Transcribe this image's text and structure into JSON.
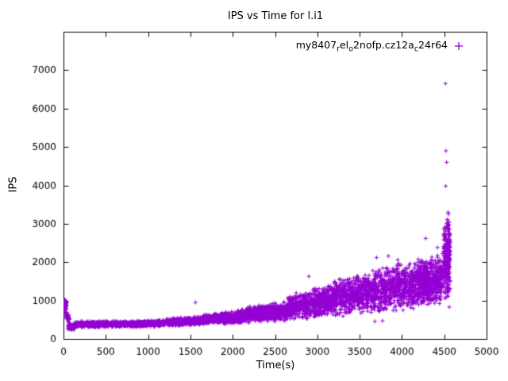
{
  "chart_data": {
    "type": "scatter",
    "title": "IPS vs Time for l.i1",
    "xlabel": "Time(s)",
    "ylabel": "IPS",
    "xlim": [
      0,
      5000
    ],
    "ylim": [
      0,
      8000
    ],
    "xticks": [
      0,
      500,
      1000,
      1500,
      2000,
      2500,
      3000,
      3500,
      4000,
      4500,
      5000
    ],
    "yticks": [
      0,
      1000,
      2000,
      3000,
      4000,
      5000,
      6000,
      7000
    ],
    "grid": false,
    "legend_position": "top-right-inside",
    "marker": "plus",
    "series": [
      {
        "name_raw": "my8407_rel_o2nofp.cz12a_c24r64",
        "name_parts": [
          {
            "text": "my8407"
          },
          {
            "text": "r",
            "sub": true
          },
          {
            "text": "el"
          },
          {
            "text": "o",
            "sub": true
          },
          {
            "text": "2nofp.cz12a"
          },
          {
            "text": "c",
            "sub": true
          },
          {
            "text": "24r64"
          }
        ],
        "color": "#9400D3",
        "cloud_segments": [
          {
            "x0": 5,
            "x1": 35,
            "n": 70,
            "y_lo_start": 720,
            "y_hi_start": 1060,
            "y_lo_end": 700,
            "y_hi_end": 1000
          },
          {
            "x0": 25,
            "x1": 70,
            "n": 40,
            "y_lo_start": 480,
            "y_hi_start": 800,
            "y_lo_end": 380,
            "y_hi_end": 620
          },
          {
            "x0": 55,
            "x1": 130,
            "n": 70,
            "y_lo_start": 210,
            "y_hi_start": 420,
            "y_lo_end": 230,
            "y_hi_end": 400
          },
          {
            "x0": 120,
            "x1": 650,
            "n": 380,
            "y_lo_start": 290,
            "y_hi_start": 470,
            "y_lo_end": 300,
            "y_hi_end": 470
          },
          {
            "x0": 650,
            "x1": 1150,
            "n": 400,
            "y_lo_start": 300,
            "y_hi_start": 470,
            "y_lo_end": 310,
            "y_hi_end": 500
          },
          {
            "x0": 1150,
            "x1": 1650,
            "n": 420,
            "y_lo_start": 320,
            "y_hi_start": 520,
            "y_lo_end": 350,
            "y_hi_end": 600
          },
          {
            "x0": 1650,
            "x1": 2150,
            "n": 480,
            "y_lo_start": 360,
            "y_hi_start": 650,
            "y_lo_end": 400,
            "y_hi_end": 780
          },
          {
            "x0": 2150,
            "x1": 2650,
            "n": 520,
            "y_lo_start": 400,
            "y_hi_start": 850,
            "y_lo_end": 450,
            "y_hi_end": 1000
          },
          {
            "x0": 2650,
            "x1": 3150,
            "n": 580,
            "y_lo_start": 480,
            "y_hi_start": 1150,
            "y_lo_end": 550,
            "y_hi_end": 1450
          },
          {
            "x0": 3150,
            "x1": 3650,
            "n": 620,
            "y_lo_start": 550,
            "y_hi_start": 1550,
            "y_lo_end": 650,
            "y_hi_end": 1750
          },
          {
            "x0": 3650,
            "x1": 4150,
            "n": 650,
            "y_lo_start": 650,
            "y_hi_start": 1850,
            "y_lo_end": 750,
            "y_hi_end": 2050
          },
          {
            "x0": 4150,
            "x1": 4480,
            "n": 600,
            "y_lo_start": 800,
            "y_hi_start": 2100,
            "y_lo_end": 900,
            "y_hi_end": 2250
          },
          {
            "x0": 4490,
            "x1": 4570,
            "n": 260,
            "y_lo_start": 1000,
            "y_hi_start": 3100,
            "y_lo_end": 1000,
            "y_hi_end": 3300
          }
        ],
        "outliers": [
          [
            1560,
            950
          ],
          [
            2900,
            1630
          ],
          [
            3680,
            455
          ],
          [
            3770,
            470
          ],
          [
            3700,
            2120
          ],
          [
            3840,
            2160
          ],
          [
            3950,
            2060
          ],
          [
            4280,
            2620
          ],
          [
            4420,
            2380
          ],
          [
            4515,
            6650
          ],
          [
            4520,
            4900
          ],
          [
            4528,
            4600
          ],
          [
            4518,
            3980
          ],
          [
            4545,
            3300
          ],
          [
            4550,
            3250
          ],
          [
            4555,
            2950
          ],
          [
            4560,
            830
          ]
        ]
      }
    ]
  }
}
